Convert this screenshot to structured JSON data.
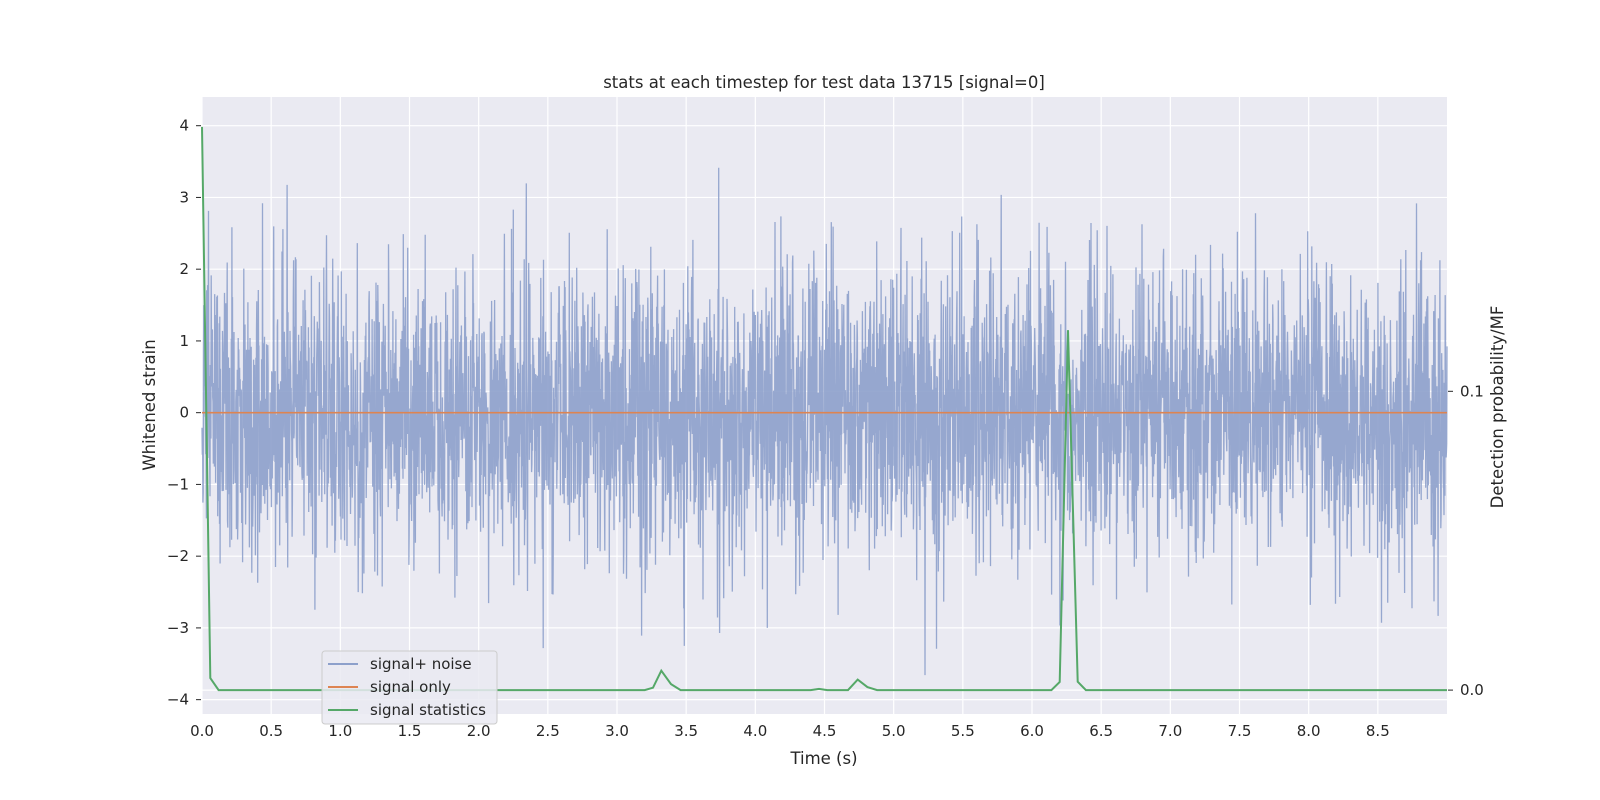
{
  "chart_data": {
    "type": "line",
    "title": "stats at each timestep for test data 13715 [signal=0]",
    "xlabel": "Time (s)",
    "ylabel": "Whitened strain",
    "y2label": "Detection probability/MF",
    "xlim": [
      0.0,
      9.0
    ],
    "ylim": [
      -4.2,
      4.4
    ],
    "y2lim": [
      -0.008,
      0.1985
    ],
    "xticks": [
      "0.0",
      "0.5",
      "1.0",
      "1.5",
      "2.0",
      "2.5",
      "3.0",
      "3.5",
      "4.0",
      "4.5",
      "5.0",
      "5.5",
      "6.0",
      "6.5",
      "7.0",
      "7.5",
      "8.0",
      "8.5"
    ],
    "yticks": [
      "4",
      "3",
      "2",
      "1",
      "0",
      "−1",
      "−2",
      "−3",
      "−4"
    ],
    "y2ticks": [
      "0.1",
      "0.0"
    ],
    "grid": true,
    "legend_position": "lower-left",
    "series": [
      {
        "name": "signal+ noise",
        "axis": "left",
        "color": "#8da0cb",
        "description_kind": "dense noise",
        "amplitude_typical": 1.0,
        "amplitude_max": 4.0
      },
      {
        "name": "signal only",
        "axis": "left",
        "color": "#dd8452",
        "x": [
          0.0,
          9.0
        ],
        "values": [
          0.0,
          0.0
        ]
      },
      {
        "name": "signal statistics",
        "axis": "right",
        "color": "#55a868",
        "x": [
          0.0,
          0.06,
          0.12,
          3.2,
          3.26,
          3.32,
          3.39,
          3.46,
          4.4,
          4.46,
          4.52,
          4.67,
          4.74,
          4.81,
          4.88,
          6.14,
          6.2,
          6.26,
          6.33,
          6.39,
          9.0
        ],
        "values": [
          0.1885,
          0.004,
          0.0,
          0.0,
          0.0008,
          0.0065,
          0.002,
          0.0,
          0.0,
          0.0004,
          0.0,
          0.0,
          0.0035,
          0.001,
          0.0,
          0.0,
          0.0027,
          0.1205,
          0.0028,
          0.0,
          0.0
        ]
      }
    ]
  }
}
